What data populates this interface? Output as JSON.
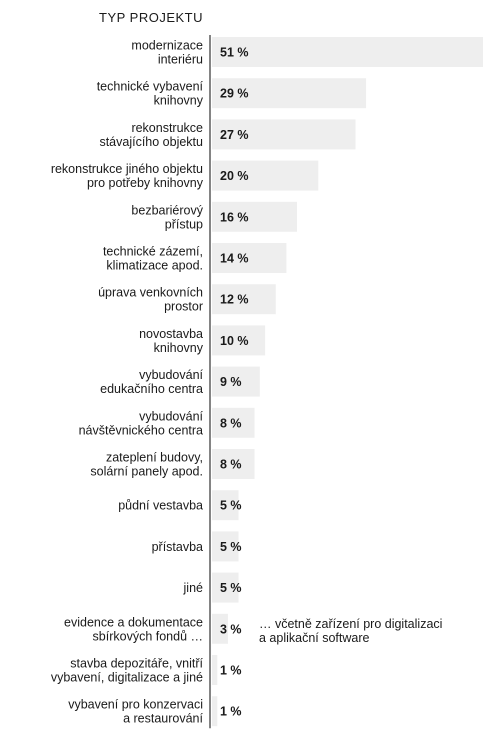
{
  "chart_data": {
    "type": "bar",
    "orientation": "horizontal",
    "title": "TYP PROJEKTU",
    "unit": "%",
    "bar_color": "#eeeeee",
    "axis_color": "#333333",
    "xlim": [
      0,
      51
    ],
    "categories": [
      [
        "modernizace",
        "interiéru"
      ],
      [
        "technické vybavení",
        "knihovny"
      ],
      [
        "rekonstrukce",
        "stávajícího objektu"
      ],
      [
        "rekonstrukce jiného objektu",
        "pro potřeby knihovny"
      ],
      [
        "bezbariérový",
        "přístup"
      ],
      [
        "technické zázemí,",
        "klimatizace apod."
      ],
      [
        "úprava venkovních",
        "prostor"
      ],
      [
        "novostavba",
        "knihovny"
      ],
      [
        "vybudování",
        "edukačního centra"
      ],
      [
        "vybudování",
        "návštěvnického centra"
      ],
      [
        "zateplení budovy,",
        "solární panely apod."
      ],
      [
        "půdní vestavba"
      ],
      [
        "přístavba"
      ],
      [
        "jiné"
      ],
      [
        "evidence a dokumentace",
        "sbírkových fondů …"
      ],
      [
        "stavba depozitáře, vnitří",
        "vybavení, digitalizace a jiné"
      ],
      [
        "vybavení pro konzervaci",
        "a restaurování"
      ]
    ],
    "values": [
      51,
      29,
      27,
      20,
      16,
      14,
      12,
      10,
      9,
      8,
      8,
      5,
      5,
      5,
      3,
      1,
      1
    ],
    "value_labels": [
      "51 %",
      "29 %",
      "27 %",
      "20 %",
      "16 %",
      "14 %",
      "12 %",
      "10 %",
      "9 %",
      "8 %",
      "8 %",
      "5 %",
      "5 %",
      "5 %",
      "3 %",
      "1 %",
      "1 %"
    ],
    "annotations": [
      {
        "category_index": 14,
        "lines": [
          "… včetně zařízení pro digitalizaci",
          "a aplikační software"
        ]
      }
    ]
  }
}
